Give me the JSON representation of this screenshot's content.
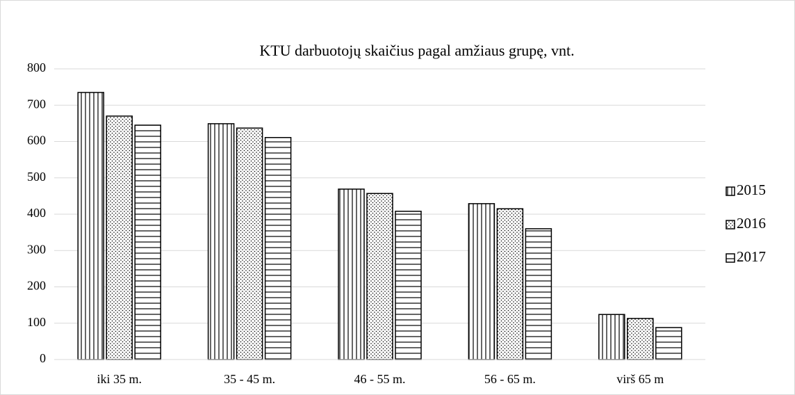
{
  "chart_data": {
    "type": "bar",
    "title": "KTU darbuotojų skaičius pagal amžiaus grupę, vnt.",
    "categories": [
      "iki 35 m.",
      "35 - 45 m.",
      "46 - 55 m.",
      "56 - 65 m.",
      "virš 65 m"
    ],
    "series": [
      {
        "name": "2015",
        "color": "#000000",
        "pattern": "vertical",
        "values": [
          735,
          649,
          469,
          429,
          124
        ]
      },
      {
        "name": "2016",
        "color": "#000000",
        "pattern": "dots",
        "values": [
          670,
          637,
          457,
          415,
          113
        ]
      },
      {
        "name": "2017",
        "color": "#000000",
        "pattern": "horizontal",
        "values": [
          645,
          611,
          408,
          360,
          88
        ]
      }
    ],
    "ylim": [
      0,
      800
    ],
    "yticks": [
      0,
      100,
      200,
      300,
      400,
      500,
      600,
      700,
      800
    ],
    "grid": true,
    "legend": "right"
  }
}
